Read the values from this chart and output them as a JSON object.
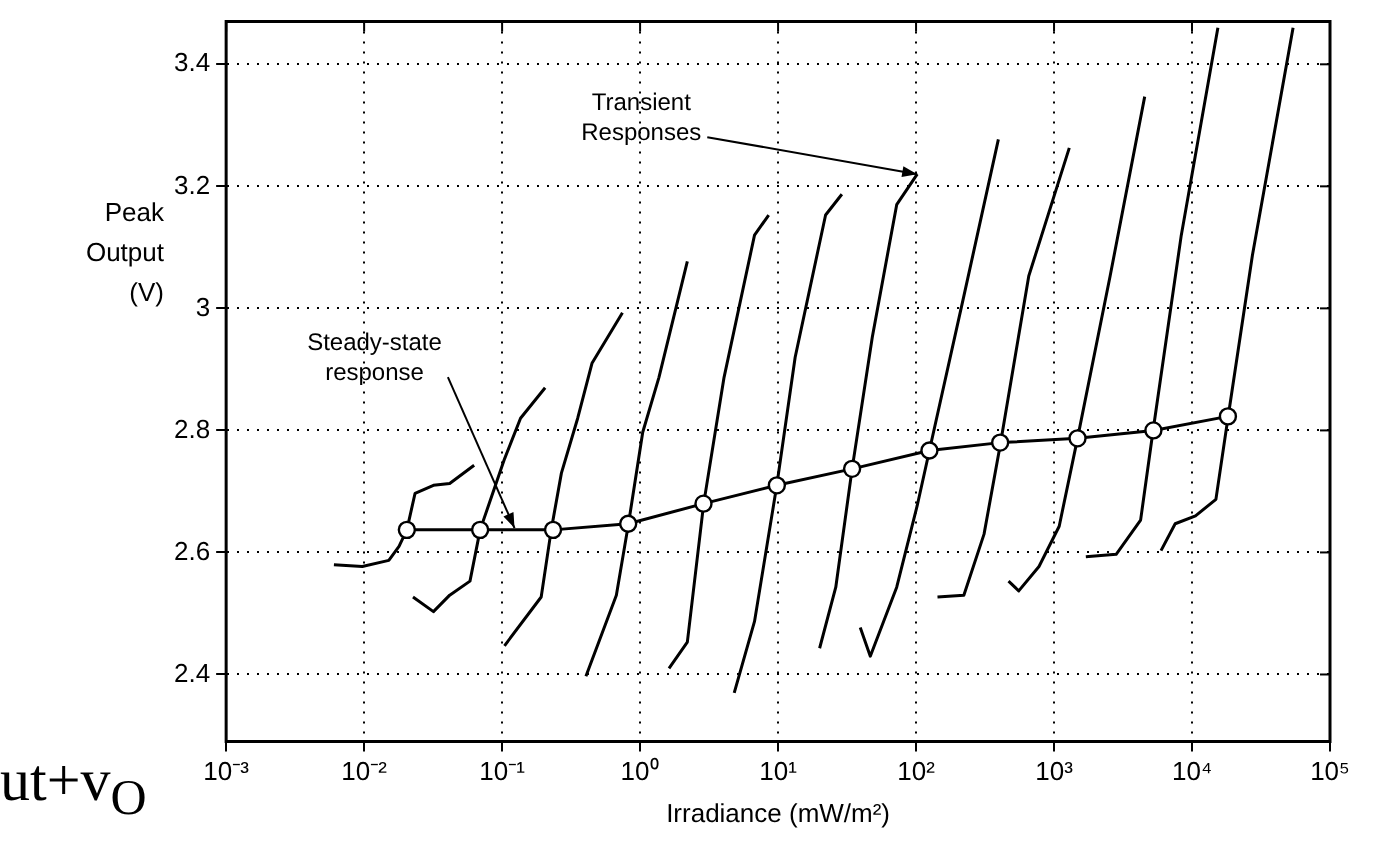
{
  "chart_data": {
    "type": "line",
    "xlabel": "Irradiance (mW/m²)",
    "ylabel": "Peak Output (V)",
    "log": "x",
    "xlim": [
      0.001,
      100000
    ],
    "ylim": [
      2.29,
      3.47
    ],
    "xticks": [
      {
        "value": 0.001,
        "label": "10⁻³"
      },
      {
        "value": 0.01,
        "label": "10⁻²"
      },
      {
        "value": 0.1,
        "label": "10⁻¹"
      },
      {
        "value": 1,
        "label": "10⁰"
      },
      {
        "value": 10,
        "label": "10¹"
      },
      {
        "value": 100,
        "label": "10²"
      },
      {
        "value": 1000,
        "label": "10³"
      },
      {
        "value": 10000,
        "label": "10⁴"
      },
      {
        "value": 100000,
        "label": "10⁵"
      }
    ],
    "yticks": [
      2.4,
      2.6,
      2.8,
      3,
      3.2,
      3.4
    ],
    "grid": true,
    "legend": false,
    "marker": "circle",
    "line_style": "solid",
    "series": [
      {
        "color": "#000000",
        "marker": "none",
        "x": [
          0.00604,
          0.0097,
          0.0151,
          0.0179,
          0.0204,
          0.0234,
          0.0318,
          0.0417,
          0.0627
        ],
        "values": [
          2.58,
          2.577,
          2.587,
          2.61,
          2.637,
          2.697,
          2.71,
          2.713,
          2.743
        ]
      },
      {
        "color": "#000000",
        "marker": "none",
        "x": [
          0.0226,
          0.0318,
          0.0417,
          0.0585,
          0.0693,
          0.104,
          0.136,
          0.205
        ],
        "values": [
          2.527,
          2.503,
          2.53,
          2.553,
          2.637,
          2.753,
          2.82,
          2.87
        ]
      },
      {
        "color": "#000000",
        "marker": "none",
        "x": [
          0.104,
          0.192,
          0.227,
          0.269,
          0.353,
          0.448,
          0.745
        ],
        "values": [
          2.447,
          2.527,
          2.637,
          2.73,
          2.82,
          2.91,
          2.993
        ]
      },
      {
        "color": "#000000",
        "marker": "none",
        "x": [
          0.405,
          0.673,
          0.824,
          1.045,
          1.37,
          2.2
        ],
        "values": [
          2.397,
          2.53,
          2.647,
          2.797,
          2.887,
          3.077
        ]
      },
      {
        "color": "#000000",
        "marker": "none",
        "x": [
          1.62,
          2.2,
          2.89,
          4.06,
          6.75,
          8.55
        ],
        "values": [
          2.41,
          2.453,
          2.68,
          2.887,
          3.12,
          3.153
        ]
      },
      {
        "color": "#000000",
        "marker": "none",
        "x": [
          4.81,
          6.75,
          9.79,
          13.3,
          22.1,
          29
        ],
        "values": [
          2.37,
          2.487,
          2.71,
          2.92,
          3.153,
          3.187
        ]
      },
      {
        "color": "#000000",
        "marker": "none",
        "x": [
          20,
          26.2,
          34.4,
          48.2,
          72.4,
          102
        ],
        "values": [
          2.443,
          2.543,
          2.737,
          2.953,
          3.17,
          3.22
        ]
      },
      {
        "color": "#000000",
        "marker": "none",
        "x": [
          39.4,
          46.6,
          72.4,
          102,
          125,
          222,
          395
        ],
        "values": [
          2.477,
          2.43,
          2.543,
          2.677,
          2.767,
          3.02,
          3.277
        ]
      },
      {
        "color": "#000000",
        "marker": "none",
        "x": [
          143,
          222,
          311,
          408,
          656,
          1290
        ],
        "values": [
          2.527,
          2.53,
          2.63,
          2.777,
          3.053,
          3.263
        ]
      },
      {
        "color": "#000000",
        "marker": "none",
        "x": [
          468,
          555,
          778,
          1090,
          1480,
          2550,
          4540
        ],
        "values": [
          2.553,
          2.537,
          2.577,
          2.643,
          2.787,
          3.053,
          3.347
        ]
      },
      {
        "color": "#000000",
        "marker": "none",
        "x": [
          1700,
          2820,
          4240,
          5200,
          8360,
          15400
        ],
        "values": [
          2.593,
          2.597,
          2.653,
          2.797,
          3.12,
          3.46
        ]
      },
      {
        "color": "#000000",
        "marker": "none",
        "x": [
          5960,
          7550,
          10600,
          14900,
          18200,
          27400,
          54000
        ],
        "values": [
          2.603,
          2.647,
          2.66,
          2.687,
          2.82,
          3.087,
          3.46
        ]
      },
      {
        "color": "#000000",
        "x": [
          0.0204,
          0.0693,
          0.234,
          0.82,
          2.88,
          9.8,
          34.4,
          125,
          407,
          1480,
          5250,
          18200
        ],
        "values": [
          2.637,
          2.637,
          2.637,
          2.647,
          2.68,
          2.71,
          2.737,
          2.767,
          2.78,
          2.787,
          2.8,
          2.823
        ]
      }
    ],
    "annotations": [
      {
        "text": "Transient Responses",
        "x": 102,
        "y": 3.22
      },
      {
        "text": "Steady-state response",
        "x": 0.123,
        "y": 2.64
      },
      "ut+v$_{O}$"
    ]
  }
}
